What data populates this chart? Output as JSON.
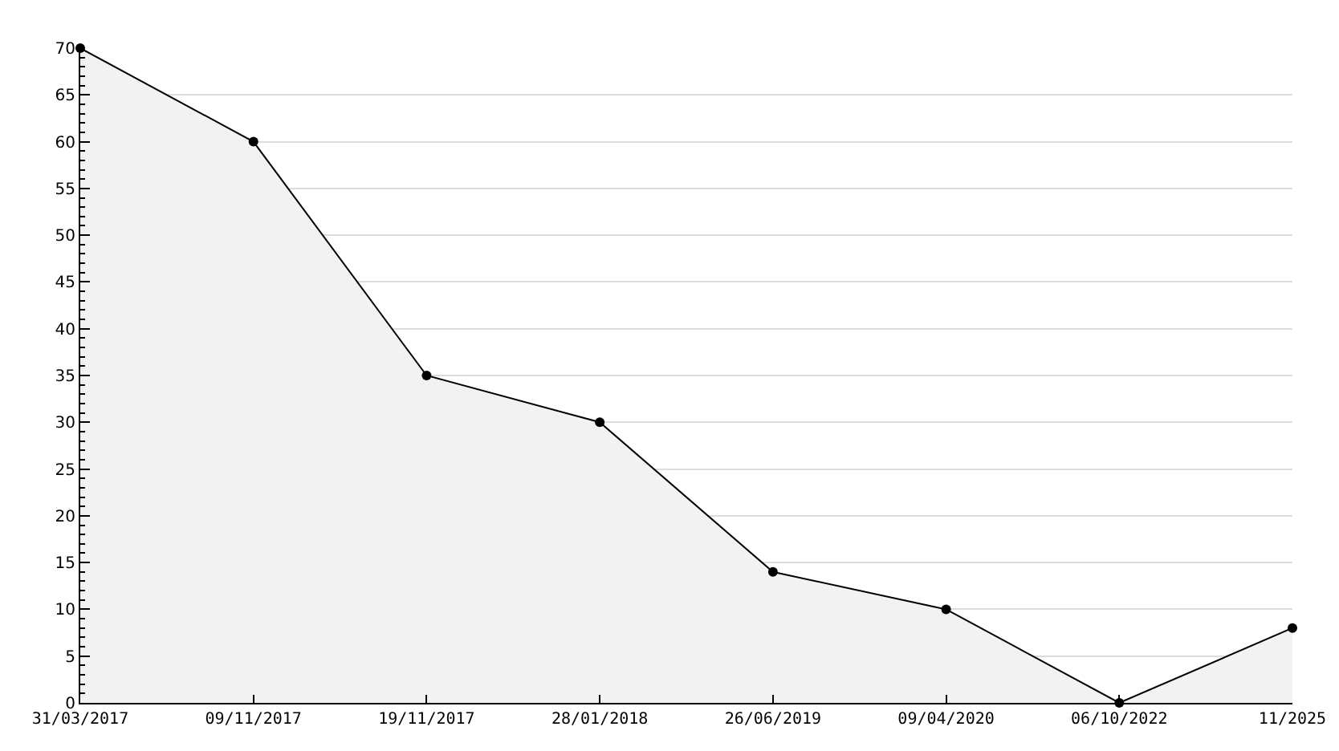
{
  "chart_data": {
    "type": "area",
    "categories": [
      "31/03/2017",
      "09/11/2017",
      "19/11/2017",
      "28/01/2018",
      "26/06/2019",
      "09/04/2020",
      "06/10/2022",
      "11/2025"
    ],
    "series": [
      {
        "color": "#000000",
        "values": [
          70,
          60,
          35,
          30,
          14,
          10,
          0,
          8
        ]
      }
    ],
    "ylim": [
      0,
      70
    ],
    "yticks": [
      0,
      5,
      10,
      15,
      20,
      25,
      30,
      35,
      40,
      45,
      50,
      55,
      60,
      65,
      70
    ],
    "grid": "y",
    "marker": "circle",
    "line_style": "solid"
  }
}
